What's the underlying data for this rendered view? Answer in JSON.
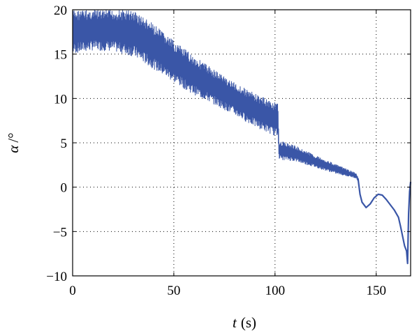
{
  "chart_data": {
    "type": "line",
    "title": "",
    "xlabel_var": "t",
    "xlabel_unit": "(s)",
    "ylabel_var": "α",
    "ylabel_unit": "/°",
    "xlim": [
      0,
      167
    ],
    "ylim": [
      -10,
      20
    ],
    "xticks": [
      "0",
      "50",
      "100",
      "150"
    ],
    "yticks": [
      "20",
      "15",
      "10",
      "5",
      "0",
      "−5",
      "−10"
    ],
    "grid": true,
    "legend": "none",
    "color": "#3a56a7",
    "series": [
      {
        "style": "oscillating-band",
        "lower_envelope": {
          "x": [
            0,
            10,
            20,
            30,
            40,
            50,
            60,
            70,
            80,
            90,
            101.5,
            102,
            110,
            120,
            130,
            140,
            141
          ],
          "y": [
            15,
            15.4,
            15.3,
            14.7,
            13.3,
            11.8,
            10.4,
            9.3,
            8.1,
            6.8,
            5.6,
            3.1,
            2.9,
            2.2,
            1.5,
            1.0,
            0.6
          ]
        },
        "upper_envelope": {
          "x": [
            0,
            10,
            20,
            30,
            40,
            50,
            60,
            70,
            80,
            90,
            101.5,
            102,
            110,
            120,
            130,
            140,
            141
          ],
          "y": [
            20,
            20,
            20,
            20,
            18.4,
            16.5,
            14.8,
            13.3,
            11.8,
            10.6,
            9.4,
            5.3,
            4.7,
            3.6,
            2.6,
            1.6,
            1.2
          ]
        }
      },
      {
        "style": "line",
        "x": [
          141,
          142,
          143,
          145,
          147,
          149,
          151,
          153,
          155,
          157,
          159,
          161,
          162,
          163,
          164,
          165,
          165.5,
          166,
          166.5,
          167
        ],
        "y": [
          1.0,
          -0.8,
          -1.7,
          -2.3,
          -1.9,
          -1.2,
          -0.8,
          -0.9,
          -1.4,
          -2.0,
          -2.6,
          -3.4,
          -4.4,
          -5.5,
          -6.6,
          -7.2,
          -8.6,
          -3.0,
          -0.5,
          0.6
        ]
      }
    ]
  }
}
